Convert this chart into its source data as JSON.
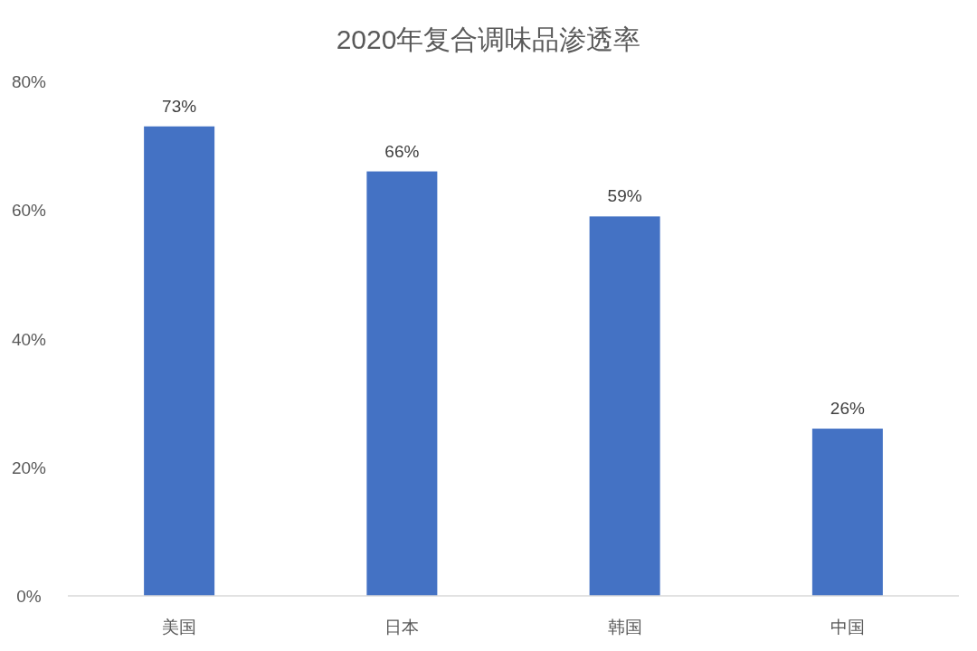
{
  "chart_data": {
    "type": "bar",
    "title": "2020年复合调味品渗透率",
    "categories": [
      "美国",
      "日本",
      "韩国",
      "中国"
    ],
    "values": [
      73,
      66,
      59,
      26
    ],
    "value_labels": [
      "73%",
      "66%",
      "59%",
      "26%"
    ],
    "color": "#4472c4",
    "ylim": [
      0,
      80
    ],
    "yticks": [
      {
        "value": 0,
        "label": "0%"
      },
      {
        "value": 20,
        "label": "20%"
      },
      {
        "value": 40,
        "label": "40%"
      },
      {
        "value": 60,
        "label": "60%"
      },
      {
        "value": 80,
        "label": "80%"
      }
    ]
  }
}
